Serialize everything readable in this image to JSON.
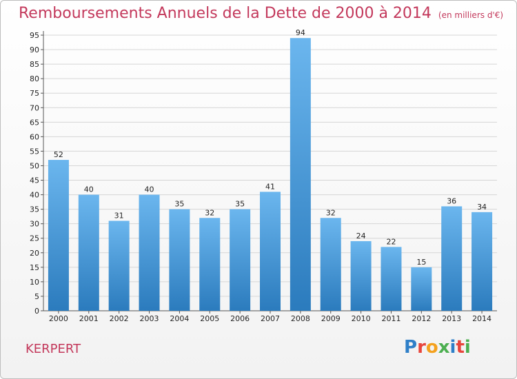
{
  "header": {
    "title": "Remboursements Annuels de la Dette de 2000 à 2014",
    "unit": "(en milliers d'€)"
  },
  "footer": {
    "place": "KERPERT",
    "logo_text": "Proxiti"
  },
  "colors": {
    "title": "#c3385b",
    "bar_top": "#6bb6ee",
    "bar_bottom": "#2b7bbd",
    "logo_letters": [
      "#2e7fc8",
      "#e8453c",
      "#f4a11e",
      "#4caf50",
      "#2e7fc8",
      "#e8453c",
      "#4caf50"
    ]
  },
  "chart_data": {
    "type": "bar",
    "title": "Remboursements Annuels de la Dette de 2000 à 2014",
    "subtitle": "(en milliers d'€)",
    "categories": [
      "2000",
      "2001",
      "2002",
      "2003",
      "2004",
      "2005",
      "2006",
      "2007",
      "2008",
      "2009",
      "2010",
      "2011",
      "2012",
      "2013",
      "2014"
    ],
    "values": [
      52,
      40,
      31,
      40,
      35,
      32,
      35,
      41,
      94,
      32,
      24,
      22,
      15,
      36,
      34
    ],
    "yticks": [
      0,
      5,
      10,
      15,
      20,
      25,
      30,
      35,
      40,
      45,
      50,
      55,
      60,
      65,
      70,
      75,
      80,
      85,
      90,
      95
    ],
    "ylim": [
      0,
      95
    ],
    "grid": "horizontal",
    "xlabel": "",
    "ylabel": ""
  }
}
